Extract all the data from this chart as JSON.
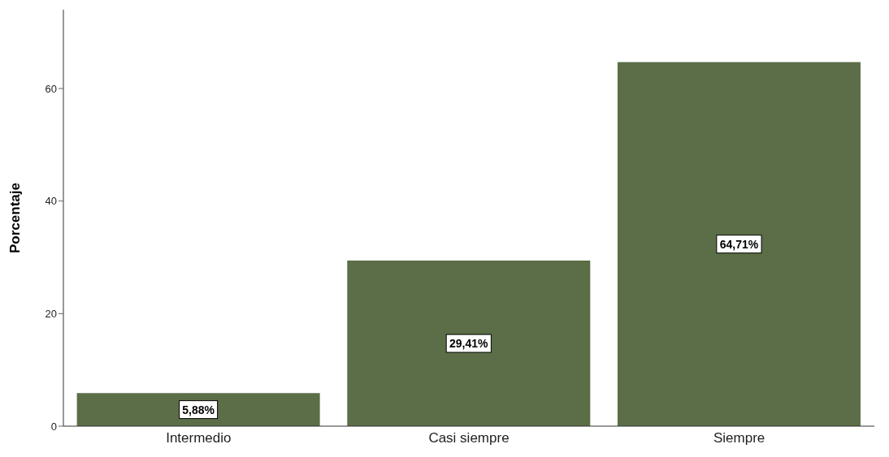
{
  "chart_data": {
    "type": "bar",
    "ylabel": "Porcentaje",
    "categories": [
      "Intermedio",
      "Casi siempre",
      "Siempre"
    ],
    "values": [
      5.88,
      29.41,
      64.71
    ],
    "value_labels": [
      "5,88%",
      "29,41%",
      "64,71%"
    ],
    "color": "#5b6e47",
    "ylim": [
      0,
      74
    ],
    "yticks": [
      0,
      20,
      40,
      60
    ],
    "grid": false
  }
}
